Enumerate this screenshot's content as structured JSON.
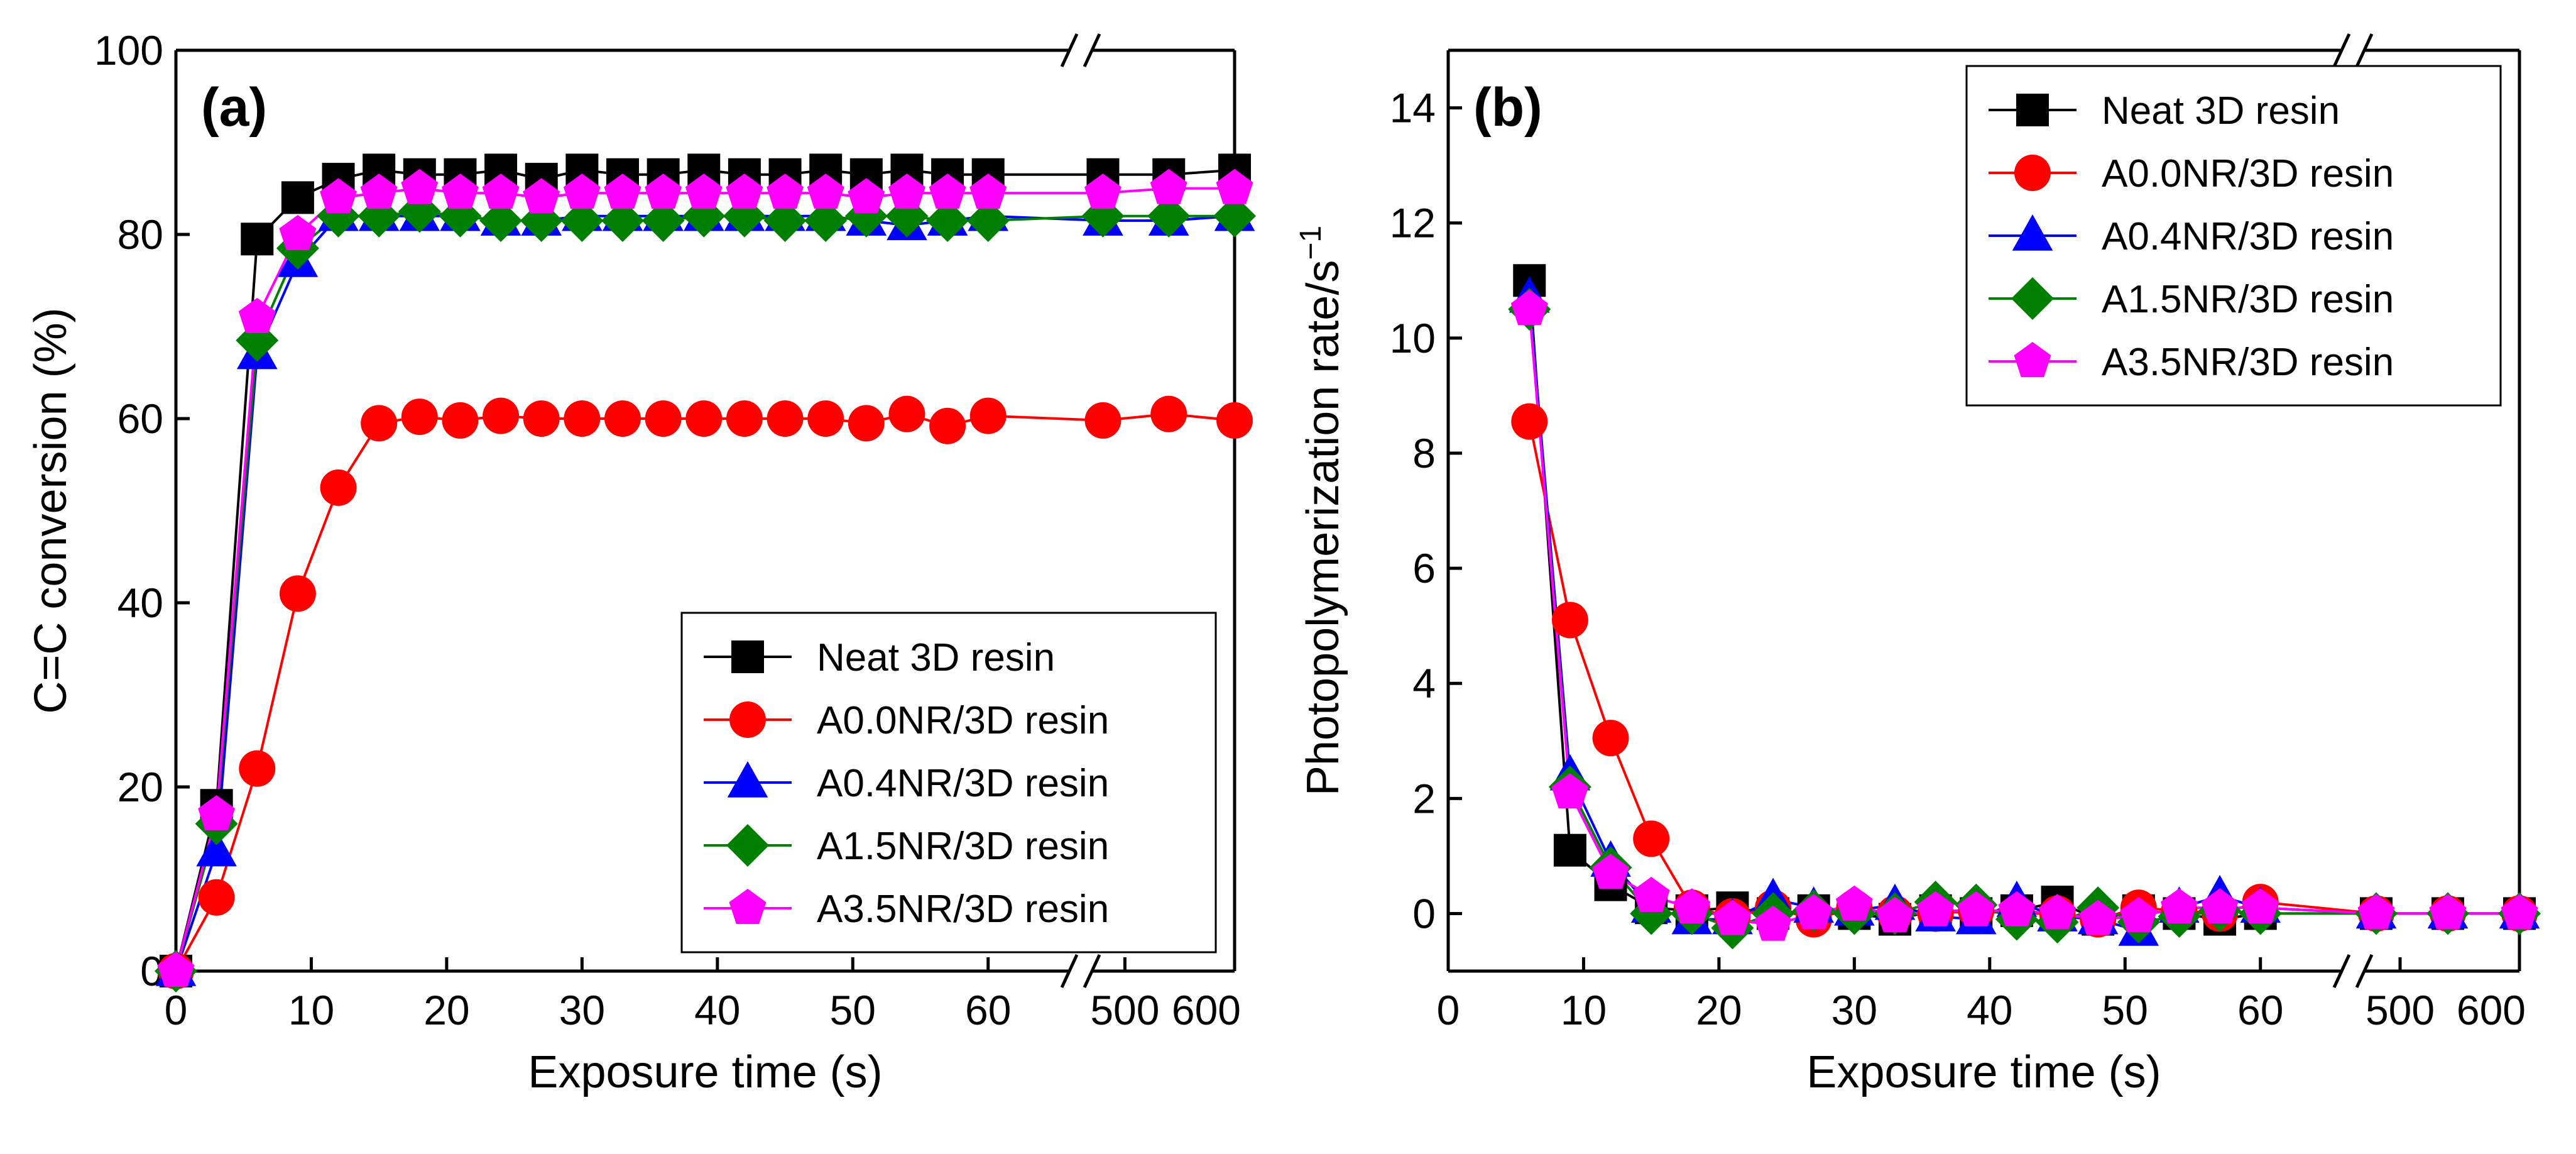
{
  "chart_data": [
    {
      "type": "line",
      "panel_label": "(a)",
      "xlabel": "Exposure time (s)",
      "ylabel": "C=C conversion (%)",
      "ylim": [
        0,
        100
      ],
      "yticks": [
        0,
        20,
        40,
        60,
        80,
        100
      ],
      "x_segment1_range": [
        0,
        66
      ],
      "x_segment1_ticks": [
        0,
        10,
        20,
        30,
        40,
        50,
        60
      ],
      "x_segment2_range": [
        470,
        600
      ],
      "x_segment2_ticks": [
        500,
        600
      ],
      "legend_position": "lower-right",
      "series": [
        {
          "name": "Neat 3D resin",
          "color": "#000000",
          "marker": "square",
          "x": [
            0,
            3,
            6,
            9,
            12,
            15,
            18,
            21,
            24,
            27,
            30,
            33,
            36,
            39,
            42,
            45,
            48,
            51,
            54,
            57,
            60,
            480,
            540,
            600
          ],
          "y": [
            0,
            18,
            79.5,
            84,
            86,
            87,
            86.5,
            86.5,
            87,
            86,
            87,
            86.5,
            86.5,
            87,
            86.5,
            86.5,
            87,
            86.5,
            87,
            86.5,
            86.5,
            86.5,
            86.5,
            87
          ]
        },
        {
          "name": "A0.0NR/3D resin",
          "color": "#ff0000",
          "marker": "circle",
          "x": [
            0,
            3,
            6,
            9,
            12,
            15,
            18,
            21,
            24,
            27,
            30,
            33,
            36,
            39,
            42,
            45,
            48,
            51,
            54,
            57,
            60,
            480,
            540,
            600
          ],
          "y": [
            0,
            8,
            22,
            41,
            52.5,
            59.5,
            60.2,
            59.8,
            60.3,
            60,
            60,
            60,
            60,
            60,
            60,
            60,
            60,
            59.5,
            60.5,
            59.2,
            60.3,
            59.8,
            60.5,
            59.8
          ]
        },
        {
          "name": "A0.4NR/3D resin",
          "color": "#0000ff",
          "marker": "triangle",
          "x": [
            0,
            3,
            6,
            9,
            12,
            15,
            18,
            21,
            24,
            27,
            30,
            33,
            36,
            39,
            42,
            45,
            48,
            51,
            54,
            57,
            60,
            480,
            540,
            600
          ],
          "y": [
            0,
            13,
            67,
            77,
            82,
            82,
            82,
            82,
            81.5,
            81.5,
            82,
            82,
            82,
            82,
            82,
            82,
            82,
            81.5,
            81,
            81.5,
            82,
            81.5,
            81.5,
            82
          ]
        },
        {
          "name": "A1.5NR/3D resin",
          "color": "#008000",
          "marker": "diamond",
          "x": [
            0,
            3,
            6,
            9,
            12,
            15,
            18,
            21,
            24,
            27,
            30,
            33,
            36,
            39,
            42,
            45,
            48,
            51,
            54,
            57,
            60,
            480,
            540,
            600
          ],
          "y": [
            0,
            16,
            68.5,
            78.5,
            82,
            82,
            82.5,
            82,
            81.5,
            81.5,
            81.5,
            81.5,
            81.5,
            82,
            82,
            81.5,
            81.5,
            82,
            82,
            81.5,
            81.5,
            82,
            82,
            82
          ]
        },
        {
          "name": "A3.5NR/3D resin",
          "color": "#ff00ff",
          "marker": "pentagon",
          "x": [
            0,
            3,
            6,
            9,
            12,
            15,
            18,
            21,
            24,
            27,
            30,
            33,
            36,
            39,
            42,
            45,
            48,
            51,
            54,
            57,
            60,
            480,
            540,
            600
          ],
          "y": [
            0,
            17,
            71,
            80,
            84,
            84.5,
            85,
            84.5,
            84.5,
            84,
            84.5,
            84.5,
            84.5,
            84.5,
            84.5,
            84.5,
            84.5,
            84,
            84.5,
            84.5,
            84.5,
            84.5,
            85,
            85
          ]
        }
      ]
    },
    {
      "type": "line",
      "panel_label": "(b)",
      "xlabel": "Exposure time (s)",
      "ylabel": "Photopolymerization rate/s",
      "ylabel_superscript": "−1",
      "ylim": [
        -1,
        15
      ],
      "yticks": [
        0,
        2,
        4,
        6,
        8,
        10,
        12,
        14
      ],
      "x_segment1_range": [
        0,
        66
      ],
      "x_segment1_ticks": [
        0,
        10,
        20,
        30,
        40,
        50,
        60
      ],
      "x_segment2_range": [
        470,
        600
      ],
      "x_segment2_ticks": [
        500,
        600
      ],
      "legend_position": "top-right",
      "series": [
        {
          "name": "Neat 3D resin",
          "color": "#000000",
          "marker": "square",
          "x": [
            6,
            9,
            12,
            15,
            18,
            21,
            24,
            27,
            30,
            33,
            36,
            39,
            42,
            45,
            48,
            51,
            54,
            57,
            60,
            480,
            540,
            600
          ],
          "y": [
            11,
            1.1,
            0.5,
            0.1,
            0.05,
            0.1,
            0,
            0.05,
            0,
            -0.1,
            0.05,
            0,
            0.05,
            0.2,
            -0.1,
            0.05,
            0,
            -0.1,
            0,
            0,
            0,
            0
          ]
        },
        {
          "name": "A0.0NR/3D resin",
          "color": "#ff0000",
          "marker": "circle",
          "x": [
            6,
            9,
            12,
            15,
            18,
            21,
            24,
            27,
            30,
            33,
            36,
            39,
            42,
            45,
            48,
            51,
            54,
            57,
            60,
            480,
            540,
            600
          ],
          "y": [
            8.55,
            5.1,
            3.05,
            1.3,
            0.1,
            -0.05,
            0.1,
            -0.1,
            0.1,
            0,
            0,
            0.05,
            0,
            0,
            -0.1,
            0.1,
            0.05,
            0,
            0.2,
            0,
            0,
            0
          ]
        },
        {
          "name": "A0.4NR/3D resin",
          "color": "#0000ff",
          "marker": "triangle",
          "x": [
            6,
            9,
            12,
            15,
            18,
            21,
            24,
            27,
            30,
            33,
            36,
            39,
            42,
            45,
            48,
            51,
            54,
            57,
            60,
            480,
            540,
            600
          ],
          "y": [
            10.7,
            2.4,
            0.9,
            0.1,
            -0.1,
            -0.1,
            0.25,
            0.1,
            0.05,
            0.15,
            -0.05,
            -0.1,
            0.2,
            -0.05,
            -0.1,
            -0.3,
            0.1,
            0.3,
            0.1,
            0,
            0,
            0
          ]
        },
        {
          "name": "A1.5NR/3D resin",
          "color": "#008000",
          "marker": "diamond",
          "x": [
            6,
            9,
            12,
            15,
            18,
            21,
            24,
            27,
            30,
            33,
            36,
            39,
            42,
            45,
            48,
            51,
            54,
            57,
            60,
            480,
            540,
            600
          ],
          "y": [
            10.5,
            2.2,
            0.8,
            0,
            0,
            -0.25,
            0,
            0.05,
            0,
            0,
            0.2,
            0.15,
            -0.1,
            -0.15,
            0.1,
            -0.15,
            -0.05,
            0.05,
            0,
            0,
            0,
            0
          ]
        },
        {
          "name": "A3.5NR/3D resin",
          "color": "#ff00ff",
          "marker": "pentagon",
          "x": [
            6,
            9,
            12,
            15,
            18,
            21,
            24,
            27,
            30,
            33,
            36,
            39,
            42,
            45,
            48,
            51,
            54,
            57,
            60,
            480,
            540,
            600
          ],
          "y": [
            10.5,
            2.1,
            0.7,
            0.3,
            0.1,
            -0.1,
            -0.2,
            0,
            0.15,
            -0.05,
            0.05,
            0.05,
            0.05,
            0,
            -0.1,
            -0.05,
            0.1,
            0.1,
            0.1,
            0,
            0,
            0
          ]
        }
      ]
    }
  ]
}
